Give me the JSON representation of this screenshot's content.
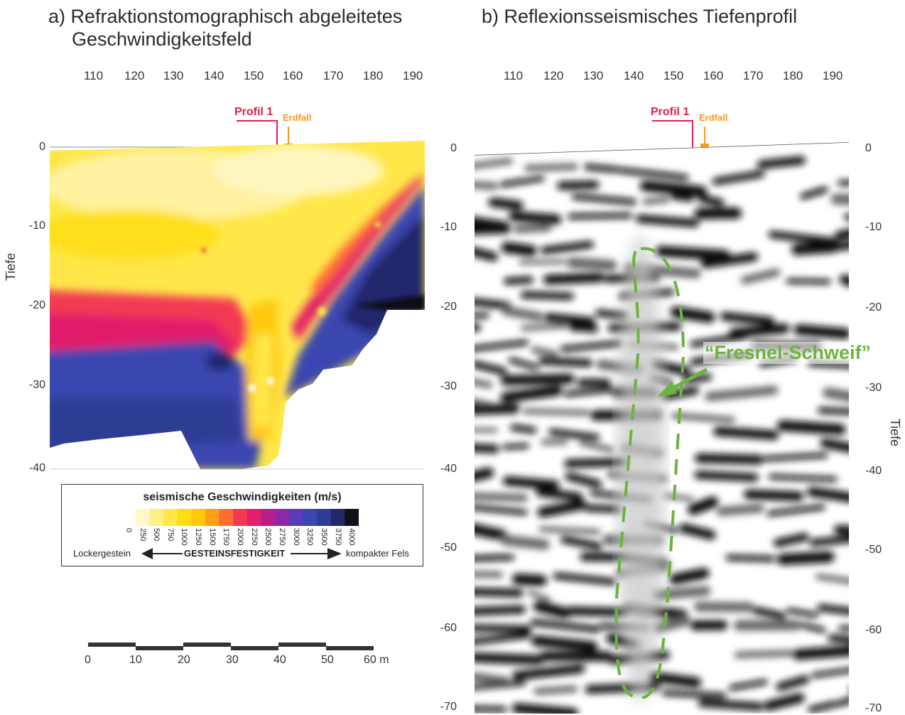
{
  "panel_a": {
    "title_line1": "a) Refraktionstomographisch abgeleitetes",
    "title_line2": "Geschwindigkeitsfeld",
    "x_ticks": [
      "110",
      "120",
      "130",
      "140",
      "150",
      "160",
      "170",
      "180",
      "190"
    ],
    "y_ticks": [
      "0",
      "-10",
      "-20",
      "-30",
      "-40"
    ],
    "ylabel": "Tiefe",
    "marker_profil": "Profil 1",
    "marker_erdfall": "Erdfall",
    "legend": {
      "title": "seismische Geschwindigkeiten (m/s)",
      "ticks": [
        "0",
        "250",
        "500",
        "750",
        "1000",
        "1250",
        "1500",
        "1750",
        "2000",
        "2250",
        "2500",
        "2750",
        "3000",
        "3250",
        "3500",
        "3750",
        "4000"
      ],
      "colors": [
        "#ffffff",
        "#fff6cc",
        "#ffef88",
        "#ffe74a",
        "#ffdc14",
        "#ffc90a",
        "#ff9f18",
        "#ff6d33",
        "#f23a52",
        "#e21f6a",
        "#b81e8a",
        "#8a2aa8",
        "#5a3bb8",
        "#3a47b0",
        "#2e3d94",
        "#22286a",
        "#101018"
      ],
      "left_label": "Lockergestein",
      "center_label": "GESTEINSFESTIGKEIT",
      "right_label": "kompakter Fels"
    },
    "scale_bar": {
      "ticks": [
        "0",
        "10",
        "20",
        "30",
        "40",
        "50"
      ],
      "end_label": "60 m"
    }
  },
  "panel_b": {
    "title": "b) Reflexionsseismisches Tiefenprofil",
    "x_ticks": [
      "110",
      "120",
      "130",
      "140",
      "150",
      "160",
      "170",
      "180",
      "190"
    ],
    "y_ticks_left": [
      "0",
      "-10",
      "-20",
      "-30",
      "-40",
      "-50",
      "-60",
      "-70"
    ],
    "y_ticks_right": [
      "0",
      "-10",
      "-20",
      "-30",
      "-40",
      "-50",
      "-60",
      "-70"
    ],
    "ylabel": "Tiefe",
    "marker_profil": "Profil 1",
    "marker_erdfall": "Erdfall",
    "annotation": "“Fresnel-Schweif”",
    "annotation_color": "#6db33f"
  },
  "colors": {
    "profil_marker": "#e2204a",
    "erdfall_marker": "#f39a1e"
  }
}
